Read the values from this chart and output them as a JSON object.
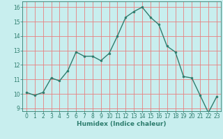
{
  "x": [
    0,
    1,
    2,
    3,
    4,
    5,
    6,
    7,
    8,
    9,
    10,
    11,
    12,
    13,
    14,
    15,
    16,
    17,
    18,
    19,
    20,
    21,
    22,
    23
  ],
  "y": [
    10.1,
    9.9,
    10.1,
    11.1,
    10.9,
    11.6,
    12.9,
    12.6,
    12.6,
    12.3,
    12.8,
    14.0,
    15.3,
    15.7,
    16.0,
    15.3,
    14.8,
    13.3,
    12.9,
    11.2,
    11.1,
    9.9,
    8.7,
    9.8
  ],
  "line_color": "#2e7d6e",
  "marker_color": "#2e7d6e",
  "bg_color": "#c8eeee",
  "grid_color": "#e88080",
  "xlabel": "Humidex (Indice chaleur)",
  "ylim": [
    8.8,
    16.4
  ],
  "xlim": [
    -0.5,
    23.5
  ],
  "yticks": [
    9,
    10,
    11,
    12,
    13,
    14,
    15,
    16
  ],
  "xticks": [
    0,
    1,
    2,
    3,
    4,
    5,
    6,
    7,
    8,
    9,
    10,
    11,
    12,
    13,
    14,
    15,
    16,
    17,
    18,
    19,
    20,
    21,
    22,
    23
  ],
  "label_color": "#2e7d6e",
  "tick_color": "#2e7d6e",
  "font_size_label": 6.5,
  "font_size_tick": 5.5,
  "line_width": 1.0,
  "marker_size": 2.0
}
